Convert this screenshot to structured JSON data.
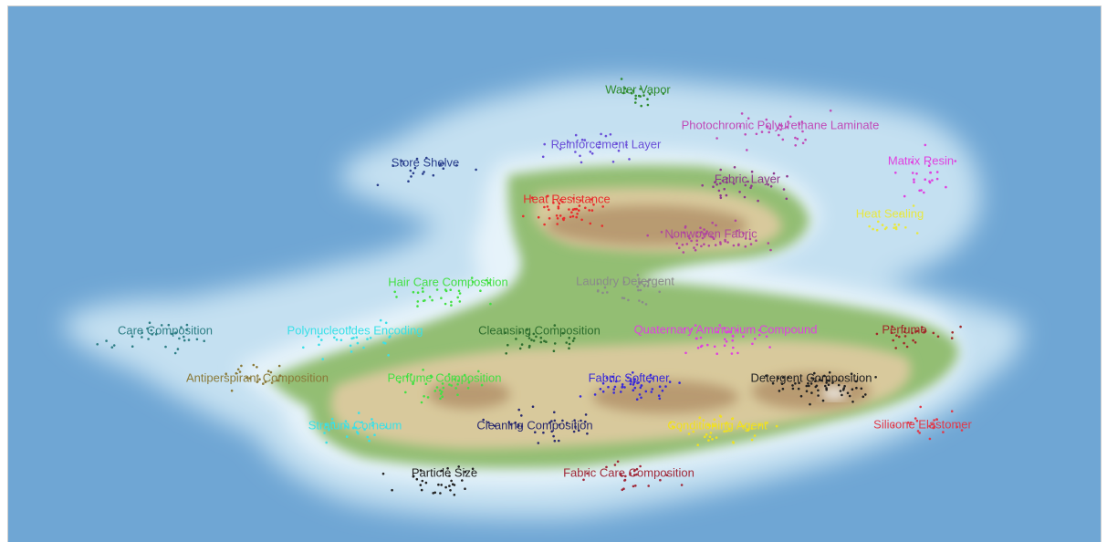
{
  "map": {
    "colors": {
      "ocean": "#6fa6d4",
      "shallow": "#c7e2f2",
      "lowland": "#93be73",
      "midland": "#d6c79a",
      "highland": "#a8865c",
      "peak": "#f4f4f4"
    },
    "labels": [
      {
        "id": "water-vapor",
        "text": "Water Vapor",
        "color": "#2e8b2e"
      },
      {
        "id": "photochromic-polyurethane-laminate",
        "text": "Photochromic Polyurethane Laminate",
        "color": "#c04bb8"
      },
      {
        "id": "reinforcement-layer",
        "text": "Reinforcement Layer",
        "color": "#6a4fd8"
      },
      {
        "id": "store-shelve",
        "text": "Store Shelve",
        "color": "#2a3f8c"
      },
      {
        "id": "matrix-resin",
        "text": "Matrix Resin",
        "color": "#e040e0"
      },
      {
        "id": "fabric-layer",
        "text": "Fabric Layer",
        "color": "#8e3a8e"
      },
      {
        "id": "heat-resistance",
        "text": "Heat Resistance",
        "color": "#e82c2c"
      },
      {
        "id": "heat-sealing",
        "text": "Heat Sealing",
        "color": "#e8e840"
      },
      {
        "id": "nonwoven-fabric",
        "text": "Nonwoven Fabric",
        "color": "#b0479e"
      },
      {
        "id": "hair-care-composition",
        "text": "Hair Care Composition",
        "color": "#44e044"
      },
      {
        "id": "laundry-detergent",
        "text": "Laundry Detergent",
        "color": "#8a8a8a"
      },
      {
        "id": "care-composition",
        "text": "Care Composition",
        "color": "#2f7f86"
      },
      {
        "id": "polynucleotides-encoding",
        "text": "Polynucleotides Encoding",
        "color": "#3ae0e8"
      },
      {
        "id": "cleansing-composition",
        "text": "Cleansing Composition",
        "color": "#2e6e2e"
      },
      {
        "id": "quaternary-ammonium-compound",
        "text": "Quaternary Ammonium Compound",
        "color": "#e040e0"
      },
      {
        "id": "perfume",
        "text": "Perfume",
        "color": "#a02a2a"
      },
      {
        "id": "antiperspirant-composition",
        "text": "Antiperspirant Composition",
        "color": "#8a7a3a"
      },
      {
        "id": "perfume-composition",
        "text": "Perfume Composition",
        "color": "#44e044"
      },
      {
        "id": "fabric-softener",
        "text": "Fabric Softener",
        "color": "#3a2ad8"
      },
      {
        "id": "detergent-composition",
        "text": "Detergent Composition",
        "color": "#222222"
      },
      {
        "id": "stratum-corneum",
        "text": "Stratum Corneum",
        "color": "#3ae0e8"
      },
      {
        "id": "cleaning-composition",
        "text": "Cleaning Composition",
        "color": "#2a2a6e"
      },
      {
        "id": "conditioning-agent",
        "text": "Conditioning Agent",
        "color": "#f0e020"
      },
      {
        "id": "silicone-elastomer",
        "text": "Silicone Elastomer",
        "color": "#e03a4a"
      },
      {
        "id": "particle-size",
        "text": "Particle Size",
        "color": "#222222"
      },
      {
        "id": "fabric-care-composition",
        "text": "Fabric Care Composition",
        "color": "#a02a3a"
      }
    ]
  }
}
